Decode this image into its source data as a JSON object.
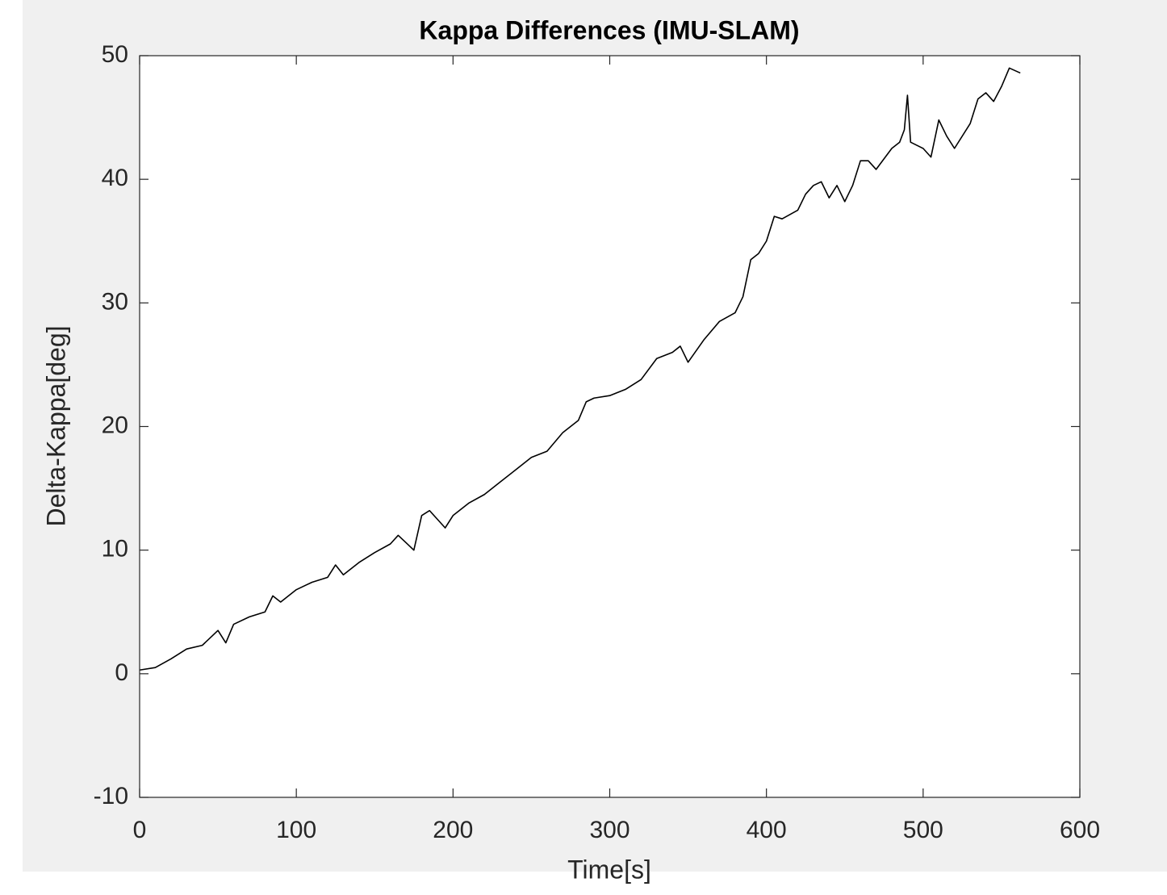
{
  "chart_data": {
    "type": "line",
    "title": "Kappa Differences (IMU-SLAM)",
    "x_label": "Time[s]",
    "y_label": "Delta-Kappa[deg]",
    "xlim": [
      0,
      600
    ],
    "ylim": [
      -10,
      50
    ],
    "xticks": [
      0,
      100,
      200,
      300,
      400,
      500,
      600
    ],
    "yticks": [
      -10,
      0,
      10,
      20,
      30,
      40,
      50
    ],
    "grid": false,
    "series": [
      {
        "name": "Delta-Kappa",
        "color": "#000000",
        "x": [
          0,
          10,
          20,
          30,
          40,
          50,
          55,
          60,
          70,
          80,
          85,
          90,
          100,
          110,
          120,
          125,
          130,
          140,
          150,
          160,
          165,
          170,
          175,
          180,
          185,
          190,
          195,
          200,
          210,
          220,
          230,
          240,
          250,
          260,
          270,
          280,
          285,
          290,
          300,
          310,
          320,
          330,
          340,
          345,
          350,
          360,
          370,
          380,
          385,
          390,
          395,
          400,
          405,
          410,
          420,
          425,
          430,
          435,
          440,
          445,
          450,
          455,
          460,
          465,
          470,
          480,
          485,
          488,
          490,
          492,
          500,
          505,
          510,
          515,
          520,
          530,
          535,
          540,
          545,
          550,
          555,
          562
        ],
        "values": [
          0.3,
          0.5,
          1.2,
          2.0,
          2.3,
          3.5,
          2.5,
          4.0,
          4.6,
          5.0,
          6.3,
          5.8,
          6.8,
          7.4,
          7.8,
          8.8,
          8.0,
          9.0,
          9.8,
          10.5,
          11.2,
          10.6,
          10.0,
          12.8,
          13.2,
          12.5,
          11.8,
          12.8,
          13.8,
          14.5,
          15.5,
          16.5,
          17.5,
          18.0,
          19.5,
          20.5,
          22.0,
          22.3,
          22.5,
          23.0,
          23.8,
          25.5,
          26.0,
          26.5,
          25.2,
          27.0,
          28.5,
          29.2,
          30.5,
          33.5,
          34.0,
          35.0,
          37.0,
          36.8,
          37.5,
          38.8,
          39.5,
          39.8,
          38.5,
          39.5,
          38.2,
          39.5,
          41.5,
          41.5,
          40.8,
          42.5,
          43.0,
          44.0,
          46.8,
          43.0,
          42.5,
          41.8,
          44.8,
          43.5,
          42.5,
          44.5,
          46.5,
          47.0,
          46.3,
          47.5,
          49.0,
          48.6
        ]
      }
    ]
  }
}
